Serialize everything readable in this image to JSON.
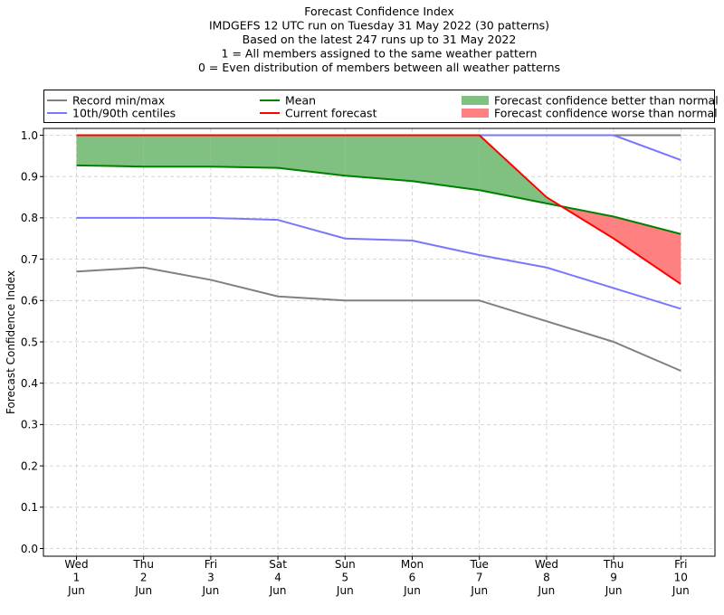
{
  "chart_data": {
    "type": "line",
    "title_lines": [
      "Forecast Confidence Index",
      "IMDGEFS 12 UTC run on Tuesday 31 May 2022 (30 patterns)",
      "Based on the latest 247 runs up to 31 May 2022",
      "1 = All members assigned to the same weather pattern",
      "0 = Even distribution of members between all weather patterns"
    ],
    "ylabel": "Forecast Confidence Index",
    "ylim": [
      0,
      1
    ],
    "yticks": [
      "0.0",
      "0.1",
      "0.2",
      "0.3",
      "0.4",
      "0.5",
      "0.6",
      "0.7",
      "0.8",
      "0.9",
      "1.0"
    ],
    "grid": true,
    "legend_position": "top",
    "categories": [
      [
        "Wed",
        "1",
        "Jun"
      ],
      [
        "Thu",
        "2",
        "Jun"
      ],
      [
        "Fri",
        "3",
        "Jun"
      ],
      [
        "Sat",
        "4",
        "Jun"
      ],
      [
        "Sun",
        "5",
        "Jun"
      ],
      [
        "Mon",
        "6",
        "Jun"
      ],
      [
        "Tue",
        "7",
        "Jun"
      ],
      [
        "Wed",
        "8",
        "Jun"
      ],
      [
        "Thu",
        "9",
        "Jun"
      ],
      [
        "Fri",
        "10",
        "Jun"
      ]
    ],
    "series": [
      {
        "key": "record_min",
        "color": "#808080",
        "values": [
          0.67,
          0.68,
          0.65,
          0.61,
          0.6,
          0.6,
          0.6,
          0.55,
          0.5,
          0.43
        ]
      },
      {
        "key": "record_max",
        "color": "#808080",
        "values": [
          1.0,
          1.0,
          1.0,
          1.0,
          1.0,
          1.0,
          1.0,
          1.0,
          1.0,
          1.0
        ]
      },
      {
        "key": "p10",
        "color": "#7777ff",
        "values": [
          0.8,
          0.8,
          0.8,
          0.795,
          0.75,
          0.745,
          0.71,
          0.68,
          0.63,
          0.58
        ]
      },
      {
        "key": "p90",
        "color": "#7777ff",
        "values": [
          1.0,
          1.0,
          1.0,
          1.0,
          1.0,
          1.0,
          1.0,
          1.0,
          1.0,
          0.94
        ]
      },
      {
        "key": "mean",
        "color": "#008000",
        "values": [
          0.927,
          0.924,
          0.924,
          0.921,
          0.902,
          0.889,
          0.867,
          0.835,
          0.803,
          0.761
        ]
      },
      {
        "key": "current",
        "color": "#ff0000",
        "values": [
          1.0,
          1.0,
          1.0,
          1.0,
          1.0,
          1.0,
          1.0,
          0.85,
          0.75,
          0.64
        ]
      }
    ],
    "fill_better_color": "#80c080",
    "fill_worse_color": "#ff8080",
    "legend": [
      {
        "label": "Record min/max",
        "kind": "line",
        "color": "#808080"
      },
      {
        "label": "Mean",
        "kind": "line",
        "color": "#008000"
      },
      {
        "label": "Forecast confidence better than normal",
        "kind": "patch",
        "color": "#80c080"
      },
      {
        "label": "10th/90th centiles",
        "kind": "line",
        "color": "#7777ff"
      },
      {
        "label": "Current forecast",
        "kind": "line",
        "color": "#ff0000"
      },
      {
        "label": "Forecast confidence worse than normal",
        "kind": "patch",
        "color": "#ff8080"
      }
    ]
  }
}
